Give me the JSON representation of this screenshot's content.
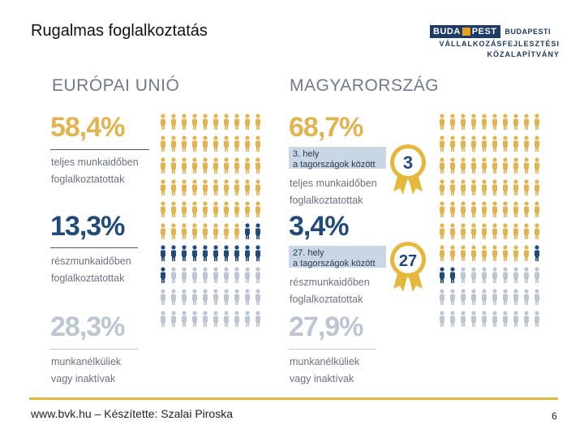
{
  "slide": {
    "title": "Rugalmas foglalkoztatás",
    "page_number": "6",
    "footer": "www.bvk.hu – Készítette: Szalai Piroska"
  },
  "logo": {
    "badge_left": "BUDA",
    "badge_right": "PEST",
    "line1": "BUDAPESTI",
    "line2": "VÁLLALKOZÁSFEJLESZTÉSI",
    "line3": "KÖZALAPÍTVÁNY"
  },
  "colors": {
    "gold": "#e3b34f",
    "blue": "#1f4a7b",
    "grey": "#bcc6d3",
    "accent_line": "#e5b73a"
  },
  "eu": {
    "header": "EURÓPAI UNIÓ",
    "full_time": {
      "pct": "58,4%",
      "label1": "teljes munkaidőben",
      "label2": "foglalkoztatottak"
    },
    "part_time": {
      "pct": "13,3%",
      "label1": "részmunkaidőben",
      "label2": "foglalkoztatottak"
    },
    "inactive": {
      "pct": "28,3%",
      "label1": "munkanélküliek",
      "label2": "vagy inaktívak"
    },
    "icon_counts": {
      "gold": 58,
      "blue": 13,
      "grey": 29
    }
  },
  "hu": {
    "header": "MAGYARORSZÁG",
    "full_time": {
      "pct": "68,7%",
      "label1": "teljes munkaidőben",
      "label2": "foglalkoztatottak",
      "rank_text1": "3. hely",
      "rank_text2": "a tagországok között",
      "rank_number": "3"
    },
    "part_time": {
      "pct": "3,4%",
      "label1": "részmunkaidőben",
      "label2": "foglalkoztatottak",
      "rank_text1": "27. hely",
      "rank_text2": "a tagországok között",
      "rank_number": "27"
    },
    "inactive": {
      "pct": "27,9%",
      "label1": "munkanélküliek",
      "label2": "vagy inaktívak"
    },
    "icon_counts": {
      "gold": 69,
      "blue": 3,
      "grey": 28
    }
  }
}
